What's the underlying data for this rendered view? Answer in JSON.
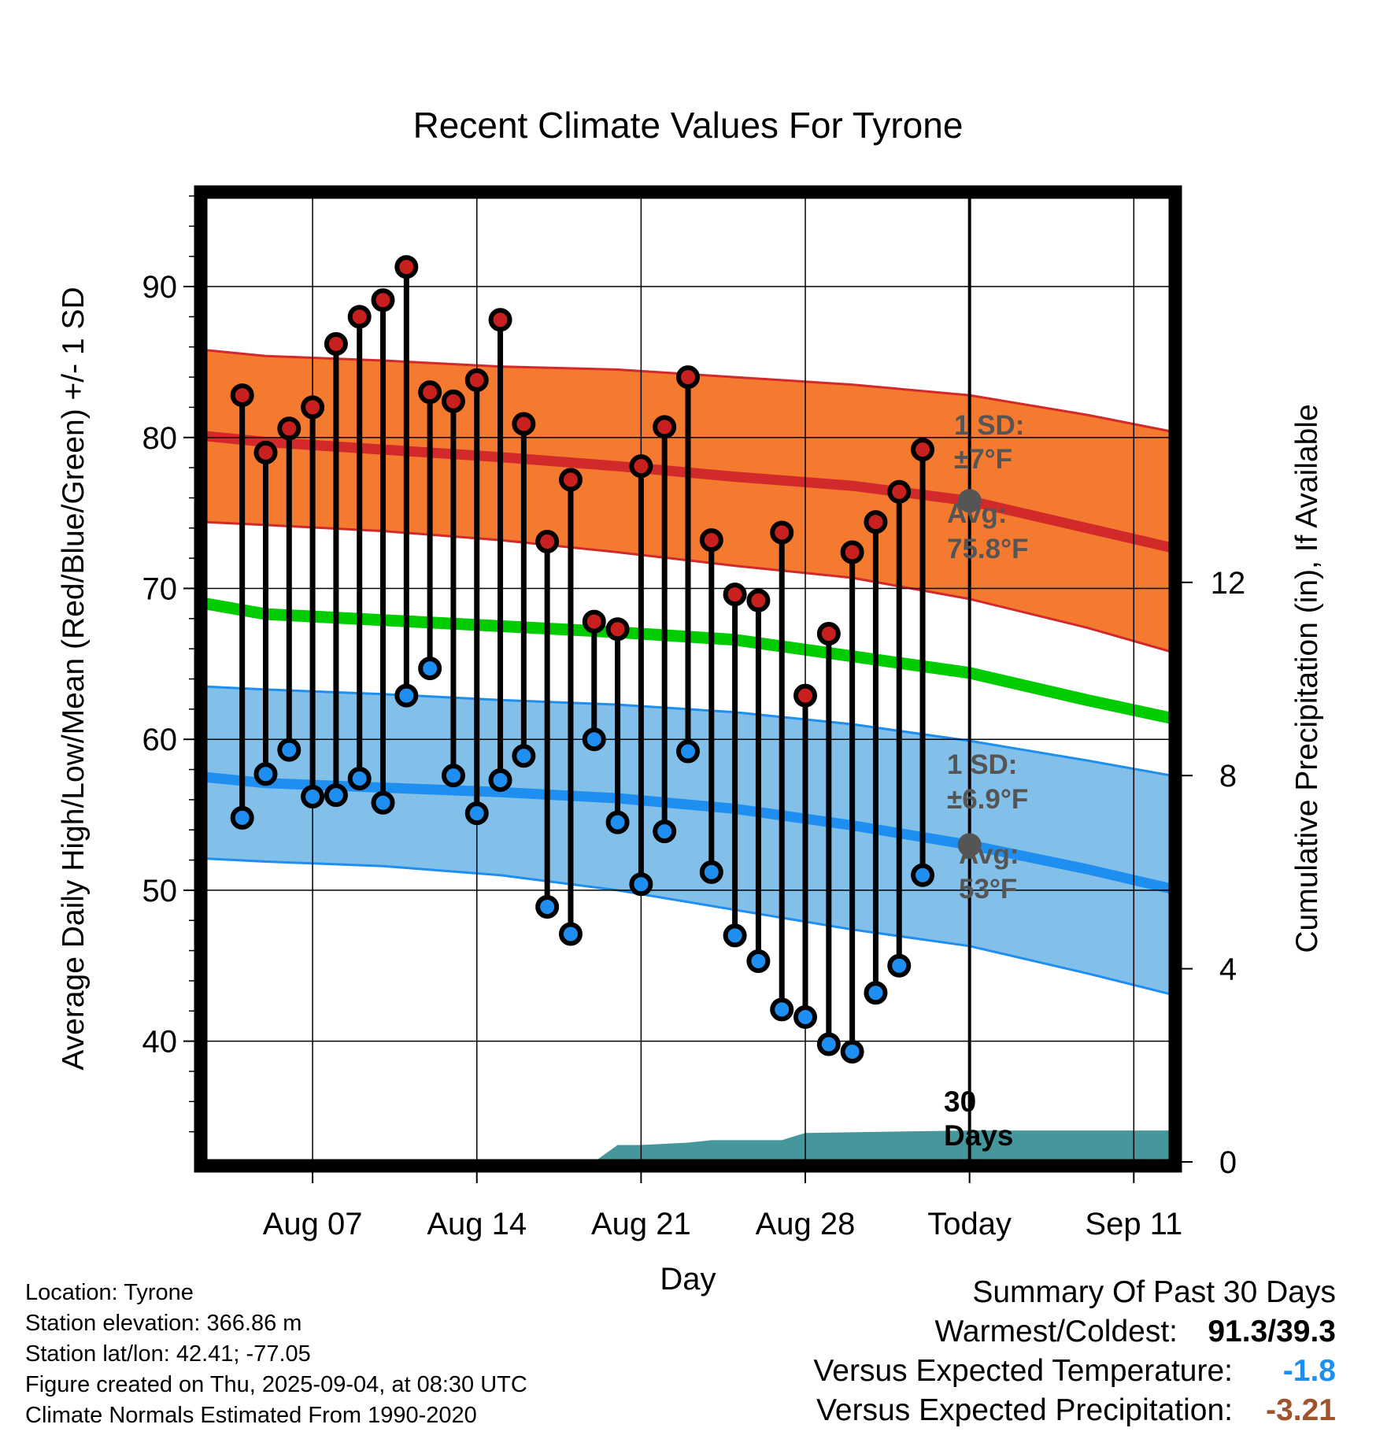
{
  "chart_data": {
    "type": "line",
    "title": "Recent Climate Values For Tyrone",
    "xlabel": "Day",
    "ylabel": "Average Daily High/Low/Mean (Red/Blue/Green) +/- 1 SD",
    "y2label": "Cumulative Precipitation (in), If Available",
    "ylim": [
      32,
      96
    ],
    "y2lim": [
      0,
      20
    ],
    "xlim": [
      2.4,
      43.6
    ],
    "x_ticks": [
      {
        "x": 7,
        "label": "Aug 07"
      },
      {
        "x": 14,
        "label": "Aug 14"
      },
      {
        "x": 21,
        "label": "Aug 21"
      },
      {
        "x": 28,
        "label": "Aug 28"
      },
      {
        "x": 35,
        "label": "Today"
      },
      {
        "x": 42,
        "label": "Sep 11"
      }
    ],
    "y_ticks": [
      40,
      50,
      60,
      70,
      80,
      90
    ],
    "y2_ticks": [
      0,
      4,
      8,
      12
    ],
    "grid": true,
    "today_x": 35,
    "series": [
      {
        "name": "High",
        "color": "#c8201e",
        "x": [
          4,
          5,
          6,
          7,
          8,
          9,
          10,
          11,
          12,
          13,
          14,
          15,
          16,
          17,
          18,
          19,
          20,
          21,
          22,
          23,
          24,
          25,
          26,
          27,
          28,
          29,
          30,
          31,
          32,
          33,
          34
        ],
        "values": [
          82.8,
          79.0,
          80.6,
          82.0,
          86.2,
          88.0,
          89.1,
          91.3,
          83.0,
          82.4,
          83.8,
          87.8,
          80.9,
          73.1,
          77.2,
          67.8,
          67.3,
          78.1,
          80.7,
          84.0,
          73.2,
          69.6,
          69.2,
          73.7,
          62.9,
          67.0,
          72.4,
          74.4,
          76.4,
          79.2,
          null
        ]
      },
      {
        "name": "Low",
        "color": "#1e8ff0",
        "x": [
          4,
          5,
          6,
          7,
          8,
          9,
          10,
          11,
          12,
          13,
          14,
          15,
          16,
          17,
          18,
          19,
          20,
          21,
          22,
          23,
          24,
          25,
          26,
          27,
          28,
          29,
          30,
          31,
          32,
          33,
          34
        ],
        "values": [
          54.8,
          57.7,
          59.3,
          56.2,
          56.3,
          57.4,
          55.8,
          62.9,
          64.7,
          57.6,
          55.1,
          57.3,
          58.9,
          48.9,
          47.1,
          60.0,
          54.5,
          50.4,
          53.9,
          59.2,
          51.2,
          47.0,
          45.3,
          42.1,
          41.6,
          39.8,
          39.3,
          43.2,
          45.0,
          51.0,
          null
        ]
      }
    ],
    "normals": {
      "x": [
        2.4,
        5,
        10,
        15,
        20,
        25,
        30,
        35,
        40,
        43.6
      ],
      "high_mean": [
        80.1,
        79.7,
        79.2,
        78.7,
        78.1,
        77.4,
        76.8,
        75.8,
        74.0,
        72.7
      ],
      "high_upper": [
        85.8,
        85.4,
        85.1,
        84.7,
        84.5,
        84.0,
        83.5,
        82.8,
        81.5,
        80.4
      ],
      "high_lower": [
        74.4,
        74.2,
        73.8,
        73.2,
        72.4,
        71.5,
        70.7,
        69.3,
        67.4,
        65.8
      ],
      "mean": [
        69.0,
        68.3,
        67.9,
        67.5,
        67.1,
        66.6,
        65.5,
        64.4,
        62.6,
        61.4
      ],
      "low_mean": [
        57.5,
        57.1,
        56.8,
        56.5,
        56.1,
        55.4,
        54.3,
        53.0,
        51.4,
        50.1
      ],
      "low_upper": [
        63.5,
        63.3,
        63.0,
        62.6,
        62.3,
        61.8,
        61.0,
        59.9,
        58.6,
        57.6
      ],
      "low_lower": [
        52.1,
        51.9,
        51.6,
        51.0,
        50.0,
        48.7,
        47.4,
        46.3,
        44.5,
        43.1
      ]
    },
    "precipitation": {
      "x": [
        2.4,
        19,
        20,
        21,
        23,
        24,
        27,
        28,
        35,
        43.6
      ],
      "values": [
        0,
        0,
        0.35,
        0.35,
        0.4,
        0.45,
        0.45,
        0.6,
        0.65,
        0.65
      ]
    },
    "annotations": {
      "high_sd": {
        "line1": "1 SD:",
        "line2": "±7°F"
      },
      "high_avg": {
        "line1": "Avg:",
        "line2": "75.8°F",
        "value": 75.8
      },
      "low_sd": {
        "line1": "1 SD:",
        "line2": "±6.9°F"
      },
      "low_avg": {
        "line1": "Avg:",
        "line2": "53°F",
        "value": 53
      },
      "days": {
        "line1": "30",
        "line2": "Days"
      }
    }
  },
  "info": {
    "location": "Location: Tyrone",
    "elevation": "Station elevation: 366.86 m",
    "latlon": "Station lat/lon: 42.41; -77.05",
    "created": "Figure created on Thu, 2025-09-04, at 08:30 UTC",
    "normals": "Climate Normals Estimated From 1990-2020"
  },
  "summary": {
    "title": "Summary Of Past 30 Days",
    "warmest_label": "Warmest/Coldest:",
    "warmest_value": "91.3/39.3",
    "temp_label": "Versus Expected Temperature:",
    "temp_value": "-1.8",
    "temp_color": "#1e8ff0",
    "precip_label": "Versus Expected Precipitation:",
    "precip_value": "-3.21",
    "precip_color": "#a0522d"
  },
  "colors": {
    "high_band": "#f47a30",
    "high_line": "#d22a2a",
    "mean_line": "#00cc00",
    "low_band": "#82c0ea",
    "low_line": "#1e8ff0",
    "precip": "#45979c",
    "annotation": "#555555"
  }
}
